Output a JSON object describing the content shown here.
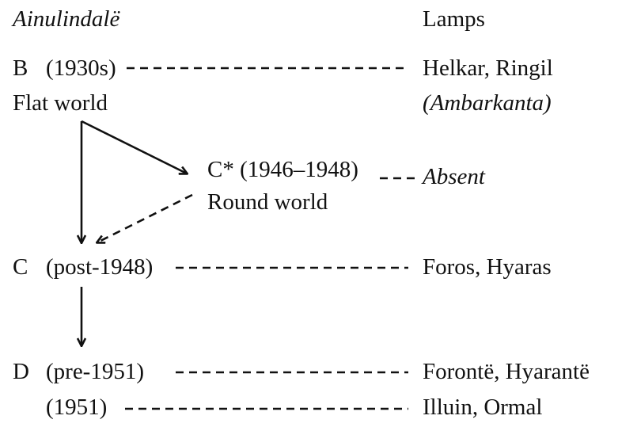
{
  "headers": {
    "left": "Ainulindalë",
    "right": "Lamps"
  },
  "nodes": {
    "b_letter": "B",
    "b_date": "(1930s)",
    "b_world": "Flat world",
    "cstar_label": "C* (1946–1948)",
    "cstar_world": "Round world",
    "c_letter": "C",
    "c_date": "(post-1948)",
    "d_letter": "D",
    "d_date": "(pre-1951)",
    "d2_date": "(1951)"
  },
  "lamps": {
    "b": "Helkar, Ringil",
    "b_source": "(Ambarkanta)",
    "cstar": "Absent",
    "c": "Foros, Hyaras",
    "d": "Forontë, Hyarantë",
    "d2": "Illuin, Ormal"
  }
}
